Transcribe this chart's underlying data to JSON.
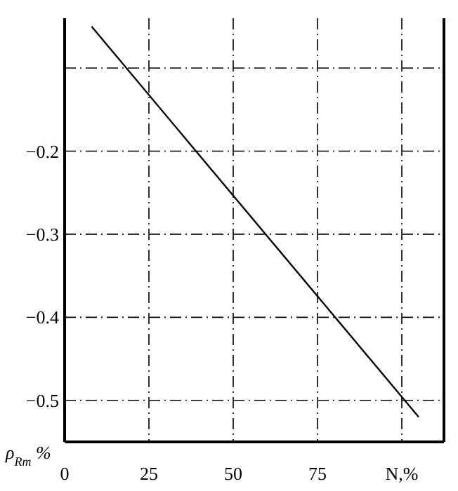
{
  "chart_data": {
    "type": "line",
    "ylabel": "ρ$_{Rm}$ %",
    "x": [
      8,
      105
    ],
    "series": [
      {
        "color": "#000000",
        "values": [
          -0.05,
          -0.52
        ]
      }
    ],
    "xlim": [
      0,
      112.5
    ],
    "ylim": [
      -0.55,
      -0.04
    ],
    "xticks": [
      {
        "value": 0,
        "label": "0"
      },
      25,
      50,
      75,
      {
        "value": 100,
        "label": "N,%"
      }
    ],
    "yticks": [
      {
        "value": -0.5,
        "label": "−0.5"
      },
      {
        "value": -0.4,
        "label": "−0.4"
      },
      {
        "value": -0.3,
        "label": "−0.3"
      },
      {
        "value": -0.2,
        "label": "−0.2"
      },
      {
        "value": -0.1,
        "label": null
      }
    ],
    "grid": true,
    "marker": "none",
    "line_style": "solid"
  }
}
